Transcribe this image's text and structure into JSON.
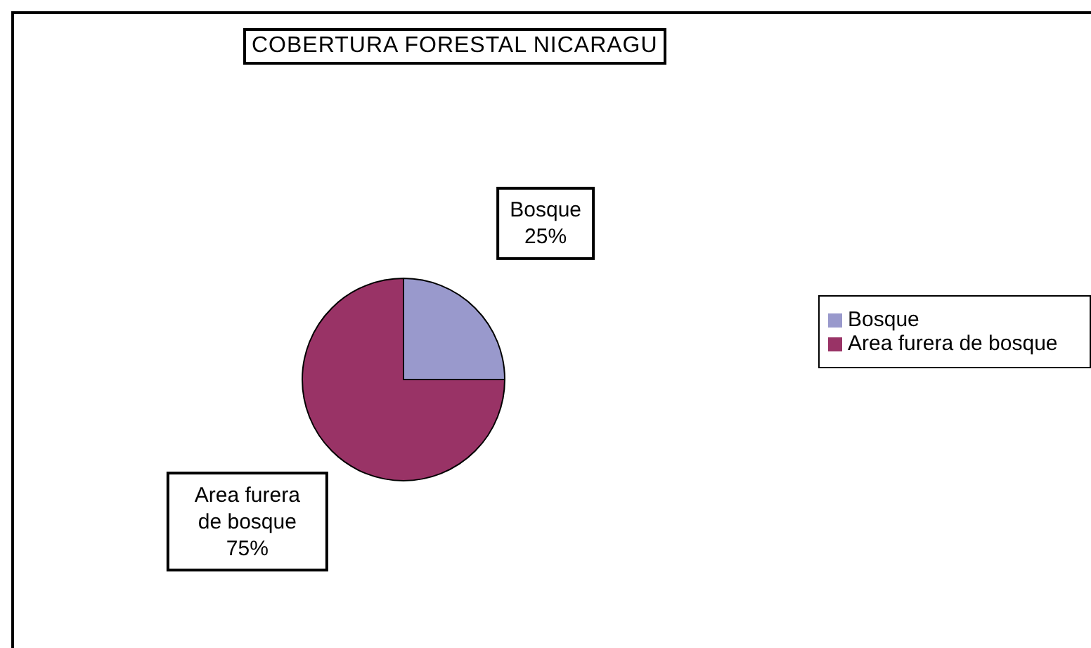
{
  "chart_data": {
    "type": "pie",
    "title": "COBERTURA FORESTAL NICARAGU",
    "categories": [
      "Bosque",
      "Area furera de bosque"
    ],
    "values": [
      25,
      75
    ],
    "colors": [
      "#9999cc",
      "#993366"
    ],
    "value_labels": [
      "25%",
      "75%"
    ],
    "legend": "right"
  }
}
